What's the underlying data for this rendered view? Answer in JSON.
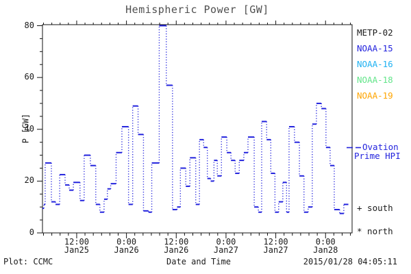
{
  "title": "Hemispheric Power [GW]",
  "axes": {
    "y_label": "P [GW]",
    "x_label": "Date and Time",
    "y_ticks": [
      0,
      20,
      40,
      60,
      80
    ],
    "y_minor_step": 5,
    "ylim": [
      0,
      80
    ],
    "x_ticks": [
      {
        "t": 12,
        "time": "12:00",
        "date": "Jan25"
      },
      {
        "t": 24,
        "time": "0:00",
        "date": "Jan26"
      },
      {
        "t": 36,
        "time": "12:00",
        "date": "Jan26"
      },
      {
        "t": 48,
        "time": "0:00",
        "date": "Jan27"
      },
      {
        "t": 60,
        "time": "12:00",
        "date": "Jan27"
      },
      {
        "t": 72,
        "time": "0:00",
        "date": "Jan28"
      }
    ],
    "x_minor_step_hours": 2,
    "t_range_hours": [
      3.75,
      78.4
    ]
  },
  "legend": {
    "satellites": [
      {
        "label": "METP-02",
        "color": "#1a1a1a"
      },
      {
        "label": "NOAA-15",
        "color": "#2222dd"
      },
      {
        "label": "NOAA-16",
        "color": "#1eb1f2"
      },
      {
        "label": "NOAA-18",
        "color": "#63e58a"
      },
      {
        "label": "NOAA-19",
        "color": "#ffa500"
      }
    ],
    "line_color": "#2222dd",
    "ovation": {
      "line1": "Ovation",
      "line2": "Prime HPI"
    },
    "south_label": "+ south",
    "north_label": "* north"
  },
  "footer": {
    "left": "Plot: CCMC",
    "right": "2015/01/28 04:05:11"
  },
  "chart_data": {
    "type": "line",
    "subtype": "step-stairs, solid horizontal segments joined by dotted vertical risers",
    "title": "Hemispheric Power [GW]",
    "xlabel": "Date and Time",
    "ylabel": "P [GW]",
    "ylim": [
      0,
      80
    ],
    "series_name": "Ovation Prime HPI",
    "color": "#2222dd",
    "x_unit": "hours since 2015-01-25 00:00",
    "t_end": 77.5,
    "points": [
      [
        3.75,
        9.5
      ],
      [
        4.1,
        11
      ],
      [
        4.4,
        27
      ],
      [
        5.9,
        12
      ],
      [
        6.9,
        11
      ],
      [
        7.9,
        22.5
      ],
      [
        9.2,
        18.5
      ],
      [
        10.2,
        16.5
      ],
      [
        11.2,
        19.5
      ],
      [
        12.8,
        12.5
      ],
      [
        13.8,
        30
      ],
      [
        15.3,
        26
      ],
      [
        16.6,
        11
      ],
      [
        17.6,
        8
      ],
      [
        18.6,
        13
      ],
      [
        19.4,
        17
      ],
      [
        20.2,
        19
      ],
      [
        21.5,
        31
      ],
      [
        22.9,
        41
      ],
      [
        24.5,
        11
      ],
      [
        25.5,
        49
      ],
      [
        26.8,
        38
      ],
      [
        28.1,
        8.5
      ],
      [
        29.3,
        8
      ],
      [
        30.1,
        27
      ],
      [
        31.9,
        80
      ],
      [
        33.6,
        57
      ],
      [
        35.1,
        9
      ],
      [
        36.2,
        10
      ],
      [
        37.0,
        25
      ],
      [
        38.3,
        18
      ],
      [
        39.3,
        29
      ],
      [
        40.7,
        11
      ],
      [
        41.6,
        36
      ],
      [
        42.6,
        33
      ],
      [
        43.5,
        21
      ],
      [
        44.3,
        20
      ],
      [
        45.1,
        28
      ],
      [
        45.9,
        22
      ],
      [
        46.9,
        37
      ],
      [
        48.2,
        31
      ],
      [
        49.2,
        28
      ],
      [
        50.2,
        23
      ],
      [
        51.2,
        28
      ],
      [
        52.3,
        31
      ],
      [
        53.3,
        37
      ],
      [
        54.8,
        10
      ],
      [
        55.8,
        8
      ],
      [
        56.6,
        43
      ],
      [
        57.8,
        36
      ],
      [
        58.8,
        23
      ],
      [
        59.8,
        8
      ],
      [
        60.7,
        12
      ],
      [
        61.7,
        19.5
      ],
      [
        62.6,
        8
      ],
      [
        63.2,
        41
      ],
      [
        64.5,
        35
      ],
      [
        65.7,
        22
      ],
      [
        66.8,
        8
      ],
      [
        67.8,
        10
      ],
      [
        68.8,
        42
      ],
      [
        69.8,
        50
      ],
      [
        71.0,
        48
      ],
      [
        72.1,
        33
      ],
      [
        73.1,
        26
      ],
      [
        74.1,
        9
      ],
      [
        75.4,
        7.5
      ],
      [
        76.4,
        11
      ]
    ]
  }
}
